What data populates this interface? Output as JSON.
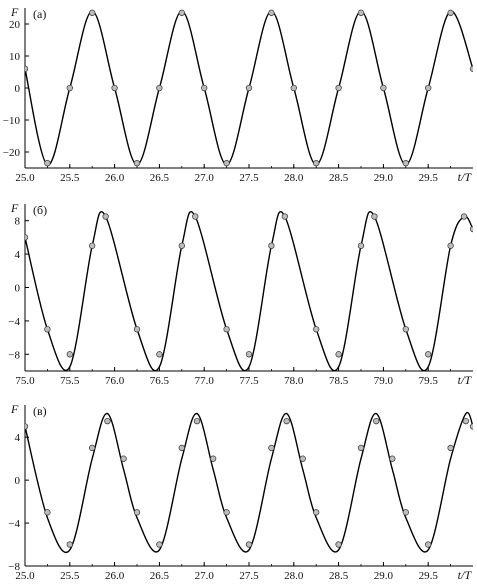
{
  "chart_data": [
    {
      "type": "line",
      "panel_label": "(а)",
      "ylabel": "F",
      "xlabel": "t/T",
      "xlim": [
        25.0,
        30.0
      ],
      "ylim": [
        -25,
        25
      ],
      "xticks": [
        "25.0",
        "25.5",
        "26.0",
        "26.5",
        "27.0",
        "27.5",
        "28.0",
        "28.5",
        "29.0",
        "29.5"
      ],
      "yticks": [
        "20",
        "10",
        "0",
        "−10",
        "−20"
      ],
      "ytick_values": [
        20,
        10,
        0,
        -10,
        -20
      ],
      "grid": false,
      "series": [
        {
          "style": "solid line",
          "color": "#000000",
          "x": [
            25.0,
            25.25,
            25.5,
            25.75,
            26.0,
            26.25,
            26.5,
            26.75,
            27.0,
            27.25,
            27.5,
            27.75,
            28.0,
            28.25,
            28.5,
            28.75,
            29.0,
            29.25,
            29.5,
            29.75,
            30.0
          ],
          "y": [
            6,
            -24,
            0,
            24,
            0,
            -24,
            0,
            24,
            0,
            -24,
            0,
            24,
            0,
            -24,
            0,
            24,
            0,
            -24,
            0,
            24,
            6
          ]
        },
        {
          "style": "gray circle markers",
          "color": "#bdbdbd",
          "x": [
            25.0,
            25.25,
            25.5,
            25.75,
            26.0,
            26.25,
            26.5,
            26.75,
            27.0,
            27.25,
            27.5,
            27.75,
            28.0,
            28.25,
            28.5,
            28.75,
            29.0,
            29.25,
            29.5,
            29.75,
            30.0
          ],
          "y": [
            6,
            -23.5,
            0,
            23.5,
            0,
            -23.5,
            0,
            23.5,
            0,
            -23.5,
            0,
            23.5,
            0,
            -23.5,
            0,
            23.5,
            0,
            -23.5,
            0,
            23.5,
            6
          ]
        }
      ]
    },
    {
      "type": "line",
      "panel_label": "(б)",
      "ylabel": "F",
      "xlabel": "t/T",
      "xlim": [
        75.0,
        80.0
      ],
      "ylim": [
        -10,
        10
      ],
      "xticks": [
        "75.0",
        "75.5",
        "76.0",
        "76.5",
        "77.0",
        "77.5",
        "78.0",
        "78.5",
        "79.0",
        "79.5"
      ],
      "yticks": [
        "8",
        "4",
        "0",
        "−4",
        "−8"
      ],
      "ytick_values": [
        8,
        4,
        0,
        -4,
        -8
      ],
      "grid": false,
      "series": [
        {
          "style": "solid line",
          "color": "#000000",
          "x": [
            75.0,
            75.25,
            75.5,
            75.75,
            75.9,
            76.25,
            76.5,
            76.75,
            76.9,
            77.25,
            77.5,
            77.75,
            77.9,
            78.25,
            78.5,
            78.75,
            78.9,
            79.25,
            79.5,
            79.75,
            79.9,
            80.0
          ],
          "y": [
            6,
            -5,
            -9.5,
            5,
            8.5,
            -5,
            -9.5,
            5,
            8.5,
            -5,
            -9.5,
            5,
            8.5,
            -5,
            -9.5,
            5,
            8.5,
            -5,
            -9.5,
            5,
            8.5,
            7
          ]
        },
        {
          "style": "gray circle markers",
          "color": "#bdbdbd",
          "x": [
            75.0,
            75.25,
            75.5,
            75.75,
            75.9,
            76.25,
            76.5,
            76.75,
            76.9,
            77.25,
            77.5,
            77.75,
            77.9,
            78.25,
            78.5,
            78.75,
            78.9,
            79.25,
            79.5,
            79.75,
            79.9,
            80.0
          ],
          "y": [
            6,
            -5,
            -8,
            5,
            8.5,
            -5,
            -8,
            5,
            8.5,
            -5,
            -8,
            5,
            8.5,
            -5,
            -8,
            5,
            8.5,
            -5,
            -8,
            5,
            8.5,
            7
          ]
        }
      ]
    },
    {
      "type": "line",
      "panel_label": "(в)",
      "ylabel": "F",
      "xlabel": "t/T",
      "xlim": [
        25.0,
        30.0
      ],
      "ylim": [
        -8,
        7
      ],
      "xticks": [
        "25.0",
        "25.5",
        "26.0",
        "26.5",
        "27.0",
        "27.5",
        "28.0",
        "28.5",
        "29.0",
        "29.5"
      ],
      "yticks": [
        "4",
        "0",
        "−4",
        "−8"
      ],
      "ytick_values": [
        4,
        0,
        -4,
        -8
      ],
      "grid": false,
      "series": [
        {
          "style": "solid line",
          "color": "#000000",
          "x": [
            25.0,
            25.25,
            25.5,
            25.75,
            25.92,
            26.1,
            26.25,
            26.5,
            26.75,
            26.92,
            27.1,
            27.25,
            27.5,
            27.75,
            27.92,
            28.1,
            28.25,
            28.5,
            28.75,
            28.92,
            29.1,
            29.25,
            29.5,
            29.75,
            29.92,
            30.0
          ],
          "y": [
            5,
            -3.5,
            -6.5,
            2,
            6.2,
            1,
            -3.5,
            -6.5,
            2,
            6.2,
            1,
            -3.5,
            -6.5,
            2,
            6.2,
            1,
            -3.5,
            -6.5,
            2,
            6.2,
            1,
            -3.5,
            -6.5,
            2,
            6.2,
            5
          ]
        },
        {
          "style": "gray circle markers",
          "color": "#bdbdbd",
          "x": [
            25.0,
            25.25,
            25.5,
            25.75,
            25.92,
            26.1,
            26.25,
            26.5,
            26.75,
            26.92,
            27.1,
            27.25,
            27.5,
            27.75,
            27.92,
            28.1,
            28.25,
            28.5,
            28.75,
            28.92,
            29.1,
            29.25,
            29.5,
            29.75,
            29.92,
            30.0
          ],
          "y": [
            5,
            -3,
            -6,
            3,
            5.5,
            2,
            -3,
            -6,
            3,
            5.5,
            2,
            -3,
            -6,
            3,
            5.5,
            2,
            -3,
            -6,
            3,
            5.5,
            2,
            -3,
            -6,
            3,
            5.5,
            5
          ]
        }
      ]
    }
  ]
}
